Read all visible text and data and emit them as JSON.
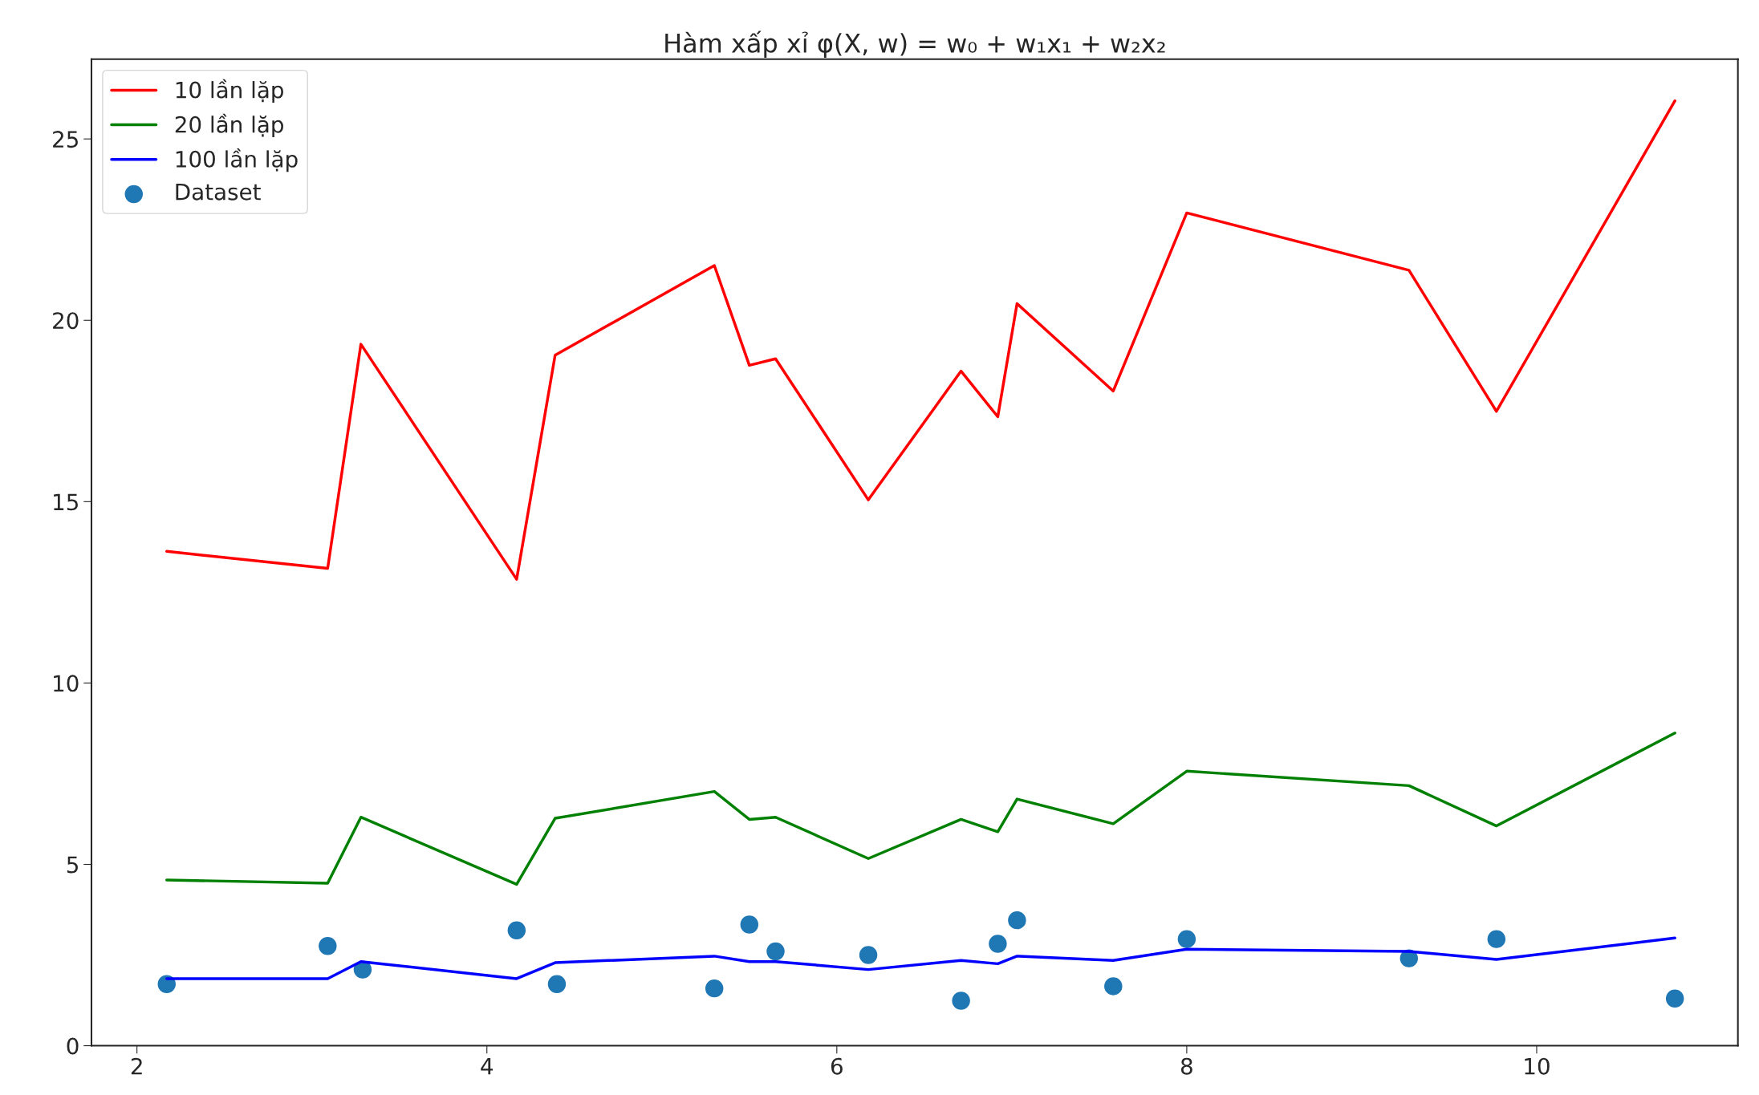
{
  "chart_data": {
    "type": "line",
    "title": "Hàm xấp xỉ φ(X, w) = w₀ + w₁x₁ + w₂x₂",
    "x": [
      2.17,
      3.09,
      3.28,
      4.17,
      4.39,
      5.3,
      5.5,
      5.65,
      6.18,
      6.71,
      6.92,
      7.03,
      7.58,
      8.0,
      9.27,
      9.77,
      10.79
    ],
    "series": [
      {
        "name": "10 lần lặp",
        "color": "#ff0000",
        "values": [
          13.63,
          13.16,
          19.34,
          12.86,
          19.04,
          21.51,
          18.76,
          18.94,
          15.05,
          18.6,
          17.34,
          20.46,
          18.05,
          22.96,
          21.38,
          17.49,
          26.05
        ]
      },
      {
        "name": "20 lần lặp",
        "color": "#008000",
        "values": [
          4.57,
          4.48,
          6.3,
          4.45,
          6.27,
          7.01,
          6.24,
          6.3,
          5.16,
          6.24,
          5.9,
          6.8,
          6.12,
          7.57,
          7.17,
          6.06,
          8.62
        ]
      },
      {
        "name": "100 lần lặp",
        "color": "#0000ff",
        "values": [
          1.85,
          1.85,
          2.32,
          1.85,
          2.29,
          2.47,
          2.32,
          2.32,
          2.1,
          2.35,
          2.26,
          2.47,
          2.35,
          2.66,
          2.6,
          2.38,
          2.97
        ]
      },
      {
        "name": "Dataset",
        "type": "scatter",
        "marker": "circle",
        "color": "#1f77b4",
        "x": [
          2.17,
          3.09,
          3.29,
          4.17,
          4.4,
          5.3,
          5.5,
          5.65,
          6.18,
          6.71,
          6.92,
          7.03,
          7.58,
          8.0,
          9.27,
          9.77,
          10.79
        ],
        "values": [
          1.7,
          2.75,
          2.1,
          3.18,
          1.7,
          1.58,
          3.34,
          2.6,
          2.5,
          1.24,
          2.81,
          3.46,
          1.64,
          2.94,
          2.41,
          2.94,
          1.3
        ]
      }
    ],
    "xlim": [
      1.74,
      11.15
    ],
    "ylim": [
      0,
      27.2
    ],
    "xticks": [
      2,
      4,
      6,
      8,
      10
    ],
    "yticks": [
      0,
      5,
      10,
      15,
      20,
      25
    ],
    "grid": false,
    "legend": "top left"
  }
}
